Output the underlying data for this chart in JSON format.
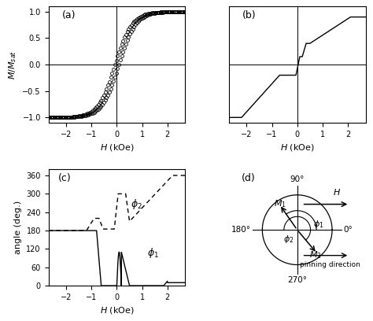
{
  "panel_labels": [
    "(a)",
    "(b)",
    "(c)",
    "(d)"
  ],
  "panel_a": {
    "xlim": [
      -2.7,
      2.7
    ],
    "ylim": [
      -1.1,
      1.1
    ],
    "yticks": [
      -1.0,
      -0.5,
      0.0,
      0.5,
      1.0
    ],
    "xticks": [
      -2,
      -1,
      0,
      1,
      2
    ]
  },
  "panel_b": {
    "xlim": [
      -2.7,
      2.7
    ],
    "ylim": [
      -1.1,
      1.1
    ],
    "xticks": [
      -2,
      -1,
      0,
      1,
      2
    ]
  },
  "panel_c": {
    "xlim": [
      -2.7,
      2.7
    ],
    "ylim": [
      0,
      380
    ],
    "yticks": [
      0,
      60,
      120,
      180,
      240,
      300,
      360
    ],
    "xticks": [
      -2,
      -1,
      0,
      1,
      2
    ]
  }
}
